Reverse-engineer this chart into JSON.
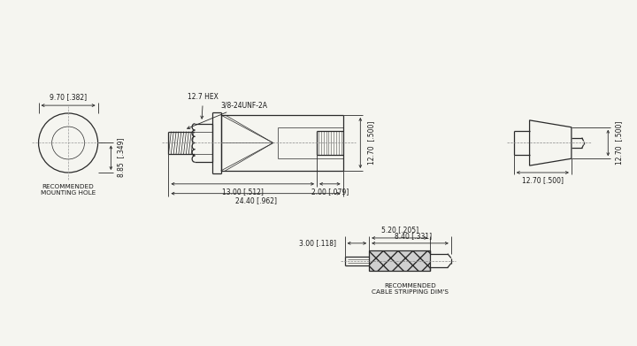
{
  "bg_color": "#f5f5f0",
  "line_color": "#2a2a2a",
  "dim_color": "#2a2a2a",
  "text_color": "#1a1a1a",
  "annotations": {
    "hex_label": "12.7 HEX",
    "thread_label": "3/8-24UNF-2A",
    "dim_13": "13.00 [.512]",
    "dim_2": "2.00 [.079]",
    "dim_24": "24.40 [.962]",
    "dim_height": "12.70  [.500]",
    "dim_hole_w": "9.70 [.382]",
    "dim_hole_h": "8.85  [.349]",
    "dim_pin_h": "12.70  [.500]",
    "dim_pin_w": "12.70 [.500]",
    "cable_label": "RECOMMENDED\nCABLE STRIPPING DIM'S",
    "hole_label": "RECOMMENDED\nMOUNTING HOLE",
    "dim_3": "3.00 [.118]",
    "dim_5": "5.20 [.205]",
    "dim_8": "8.40 [.331]"
  }
}
